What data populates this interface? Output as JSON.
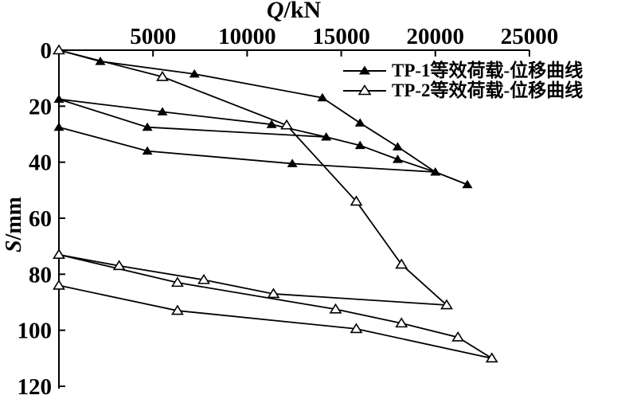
{
  "figure": {
    "background": "#ffffff",
    "ink_color": "#000000"
  },
  "x_axis": {
    "title_var": "Q",
    "title_unit": "/kN",
    "side": "top",
    "range": [
      0,
      25000
    ],
    "ticks": [
      5000,
      10000,
      15000,
      20000,
      25000
    ]
  },
  "y_axis": {
    "title_var": "S",
    "title_unit": "/mm",
    "side": "left",
    "inverted": true,
    "range": [
      0,
      120
    ],
    "ticks": [
      0,
      20,
      40,
      60,
      80,
      100,
      120
    ]
  },
  "legend": [
    {
      "label": "TP-1等效荷载-位移曲线",
      "marker": "filled-triangle"
    },
    {
      "label": "TP-2等效荷载-位移曲线",
      "marker": "open-triangle"
    }
  ],
  "chart_data": {
    "type": "line",
    "title": "",
    "xlabel": "Q/kN",
    "ylabel": "S/mm",
    "xlim": [
      0,
      25000
    ],
    "ylim": [
      0,
      120
    ],
    "y_inverted": true,
    "grid": false,
    "legend_position": "upper right",
    "series": [
      {
        "name": "TP-1等效荷载-位移曲线",
        "marker": "filled-triangle",
        "color": "#000000",
        "lines": [
          [
            [
              0,
              0
            ],
            [
              2200,
              4
            ],
            [
              7200,
              8.5
            ],
            [
              14000,
              17
            ],
            [
              16000,
              26
            ],
            [
              18000,
              34.5
            ],
            [
              20000,
              43.5
            ],
            [
              21700,
              48
            ]
          ],
          [
            [
              0,
              17.5
            ],
            [
              5500,
              22
            ],
            [
              11300,
              26.5
            ],
            [
              14200,
              31
            ],
            [
              16000,
              34
            ],
            [
              18000,
              39
            ],
            [
              20000,
              43.5
            ]
          ],
          [
            [
              0,
              17.5
            ],
            [
              4700,
              27.5
            ],
            [
              14200,
              31
            ]
          ],
          [
            [
              0,
              27.5
            ],
            [
              4700,
              36
            ],
            [
              12400,
              40.5
            ],
            [
              20000,
              43.5
            ],
            [
              21700,
              48
            ]
          ]
        ],
        "points": [
          [
            0,
            17.5
          ],
          [
            0,
            27.5
          ],
          [
            2200,
            4
          ],
          [
            4700,
            27.5
          ],
          [
            4700,
            36
          ],
          [
            5500,
            22
          ],
          [
            7200,
            8.5
          ],
          [
            11300,
            26.5
          ],
          [
            12400,
            40.5
          ],
          [
            14000,
            17
          ],
          [
            14200,
            31
          ],
          [
            16000,
            26
          ],
          [
            16000,
            34
          ],
          [
            18000,
            34.5
          ],
          [
            18000,
            39
          ],
          [
            20000,
            43.5
          ],
          [
            21700,
            48
          ]
        ]
      },
      {
        "name": "TP-2等效荷载-位移曲线",
        "marker": "open-triangle",
        "color": "#000000",
        "lines": [
          [
            [
              0,
              0
            ],
            [
              5500,
              9.5
            ],
            [
              12100,
              26.8
            ],
            [
              15800,
              54
            ],
            [
              18200,
              76.5
            ],
            [
              20600,
              91
            ]
          ],
          [
            [
              0,
              73
            ],
            [
              3200,
              77
            ],
            [
              7700,
              82
            ],
            [
              11400,
              87
            ],
            [
              20600,
              91
            ]
          ],
          [
            [
              0,
              73
            ],
            [
              6300,
              83
            ],
            [
              14700,
              92.5
            ],
            [
              18200,
              97.5
            ],
            [
              21200,
              102.5
            ],
            [
              23000,
              110
            ]
          ],
          [
            [
              0,
              84
            ],
            [
              6300,
              93
            ],
            [
              15800,
              99.5
            ],
            [
              23000,
              110
            ]
          ]
        ],
        "points": [
          [
            0,
            0
          ],
          [
            0,
            73
          ],
          [
            0,
            84
          ],
          [
            3200,
            77
          ],
          [
            5500,
            9.5
          ],
          [
            6300,
            83
          ],
          [
            6300,
            93
          ],
          [
            7700,
            82
          ],
          [
            11400,
            87
          ],
          [
            12100,
            26.8
          ],
          [
            14700,
            92.5
          ],
          [
            15800,
            54
          ],
          [
            15800,
            99.5
          ],
          [
            18200,
            76.5
          ],
          [
            18200,
            97.5
          ],
          [
            20600,
            91
          ],
          [
            21200,
            102.5
          ],
          [
            23000,
            110
          ]
        ]
      }
    ]
  }
}
